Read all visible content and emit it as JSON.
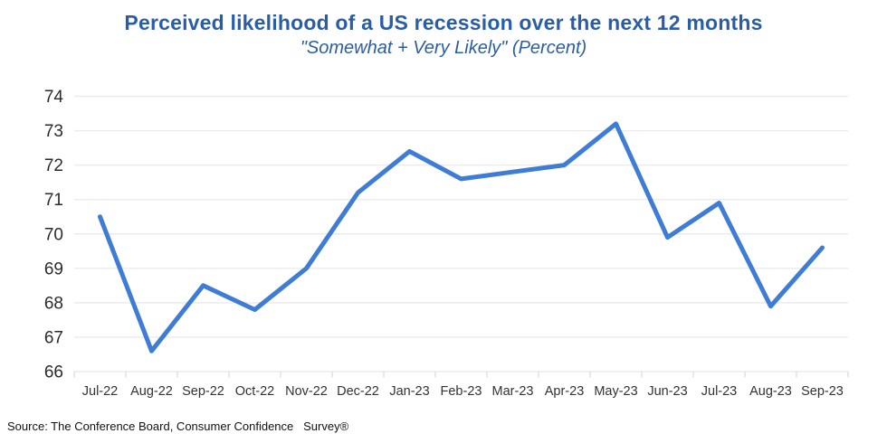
{
  "source": "Source: The Conference Board, Consumer Confidence   Survey®",
  "colors": {
    "title_blue": "#2A5DA8",
    "line_blue": "#3E7CD6",
    "gridline": "#EBEBEB",
    "axis_tick": "#D8D8D8",
    "y_label": "#2B2B2B",
    "x_label": "#333333",
    "source_text": "#111111"
  },
  "chart_data": {
    "type": "line",
    "title": "Perceived likelihood of a US recession over the next 12 months",
    "subtitle": "\"Somewhat + Very Likely\" (Percent)",
    "categories": [
      "Jul-22",
      "Aug-22",
      "Sep-22",
      "Oct-22",
      "Nov-22",
      "Dec-22",
      "Jan-23",
      "Feb-23",
      "Mar-23",
      "Apr-23",
      "May-23",
      "Jun-23",
      "Jul-23",
      "Aug-23",
      "Sep-23"
    ],
    "values": [
      70.5,
      66.6,
      68.5,
      67.8,
      69.0,
      71.2,
      72.4,
      71.6,
      71.8,
      72.0,
      73.2,
      69.9,
      70.9,
      67.9,
      69.6
    ],
    "xlabel": "",
    "ylabel": "",
    "ylim": [
      66,
      74
    ],
    "ytick_step": 1,
    "grid": "horizontal",
    "legend": "none"
  }
}
